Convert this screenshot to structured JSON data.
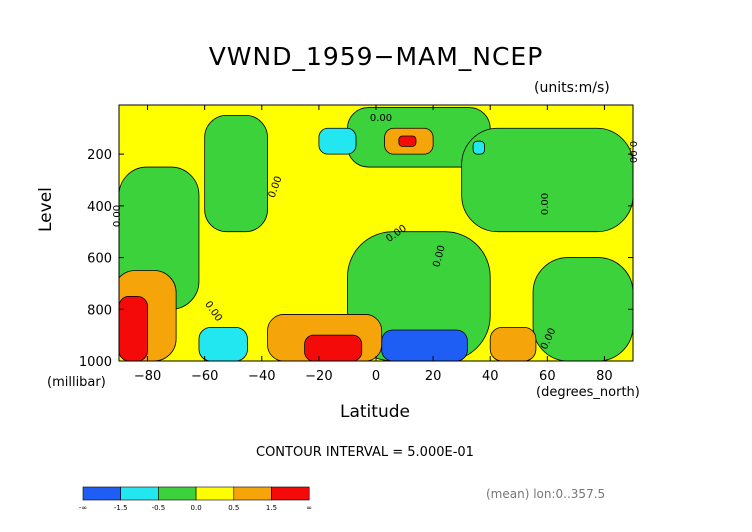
{
  "chart_data": {
    "type": "heatmap",
    "title": "VWND_1959−MAM_NCEP",
    "units": "(units:m/s)",
    "xlabel": "Latitude",
    "xunit": "(degrees_north)",
    "ylabel": "Level",
    "yunit": "(millibar)",
    "xlim": [
      -90,
      90
    ],
    "ylim": [
      1000,
      10
    ],
    "x_ticks": [
      "−80",
      "−60",
      "−40",
      "−20",
      "0",
      "20",
      "40",
      "60",
      "80"
    ],
    "x_tick_values": [
      -80,
      -60,
      -40,
      -20,
      0,
      20,
      40,
      60,
      80
    ],
    "y_ticks": [
      "200",
      "400",
      "600",
      "800",
      "1000"
    ],
    "y_tick_values": [
      200,
      400,
      600,
      800,
      1000
    ],
    "contour_interval": "CONTOUR INTERVAL = 5.000E-01",
    "contour_labels": [
      "0.00",
      "0.00",
      "0.00",
      "0.00",
      "0.00",
      "0.00",
      "0.00",
      "0.00",
      "0.00"
    ],
    "colorbar": {
      "labels": [
        "-∞",
        "-1.5",
        "-0.5",
        "0.0",
        "0.5",
        "1.5",
        "∞"
      ],
      "colors": [
        "#1e5ef5",
        "#22e6f0",
        "#3cd23c",
        "#ffff00",
        "#f5a50a",
        "#f50a0a"
      ]
    },
    "regions": [
      {
        "category": "0.0..0.5",
        "x": [
          -90,
          90
        ],
        "y": [
          10,
          1000
        ]
      },
      {
        "category": "-0.5..0.0",
        "x": [
          -90,
          -62
        ],
        "y": [
          250,
          800
        ]
      },
      {
        "category": "-0.5..0.0",
        "x": [
          -60,
          -38
        ],
        "y": [
          50,
          500
        ]
      },
      {
        "category": "-0.5..0.0",
        "x": [
          -10,
          40
        ],
        "y": [
          20,
          250
        ]
      },
      {
        "category": "-0.5..0.0",
        "x": [
          30,
          90
        ],
        "y": [
          100,
          500
        ]
      },
      {
        "category": "-0.5..0.0",
        "x": [
          -10,
          40
        ],
        "y": [
          500,
          1000
        ]
      },
      {
        "category": "-0.5..0.0",
        "x": [
          55,
          90
        ],
        "y": [
          600,
          1000
        ]
      },
      {
        "category": "-1.5..-0.5",
        "x": [
          -20,
          -7
        ],
        "y": [
          100,
          200
        ]
      },
      {
        "category": "-1.5..-0.5",
        "x": [
          34,
          38
        ],
        "y": [
          150,
          200
        ]
      },
      {
        "category": "-1.5..-0.5",
        "x": [
          -62,
          -45
        ],
        "y": [
          870,
          1000
        ]
      },
      {
        "category": "-inf..-1.5",
        "x": [
          2,
          32
        ],
        "y": [
          880,
          1000
        ]
      },
      {
        "category": "0.5..1.5",
        "x": [
          3,
          20
        ],
        "y": [
          100,
          200
        ]
      },
      {
        "category": "0.5..1.5",
        "x": [
          -38,
          2
        ],
        "y": [
          820,
          1000
        ]
      },
      {
        "category": "0.5..1.5",
        "x": [
          -92,
          -70
        ],
        "y": [
          650,
          1000
        ]
      },
      {
        "category": "0.5..1.5",
        "x": [
          40,
          56
        ],
        "y": [
          870,
          1000
        ]
      },
      {
        "category": "1.5..inf",
        "x": [
          8,
          14
        ],
        "y": [
          130,
          170
        ]
      },
      {
        "category": "1.5..inf",
        "x": [
          -25,
          -5
        ],
        "y": [
          900,
          1000
        ]
      },
      {
        "category": "1.5..inf",
        "x": [
          -90,
          -80
        ],
        "y": [
          750,
          1000
        ]
      }
    ]
  },
  "annotations": {
    "mean_note": "(mean) lon:0..357.5"
  }
}
